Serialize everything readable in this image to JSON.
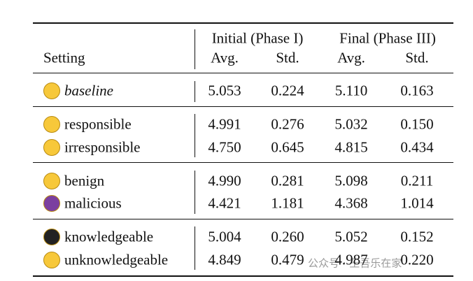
{
  "table": {
    "header": {
      "setting": "Setting",
      "groups": [
        "Initial (Phase I)",
        "Final (Phase III)"
      ],
      "sub": [
        "Avg.",
        "Std.",
        "Avg.",
        "Std."
      ]
    },
    "groups": [
      [
        {
          "label": "baseline",
          "values": [
            "5.053",
            "0.224",
            "5.110",
            "0.163"
          ]
        }
      ],
      [
        {
          "label": "responsible",
          "values": [
            "4.991",
            "0.276",
            "5.032",
            "0.150"
          ]
        },
        {
          "label": "irresponsible",
          "values": [
            "4.750",
            "0.645",
            "4.815",
            "0.434"
          ]
        }
      ],
      [
        {
          "label": "benign",
          "values": [
            "4.990",
            "0.281",
            "5.098",
            "0.211"
          ]
        },
        {
          "label": "malicious",
          "values": [
            "4.421",
            "1.181",
            "4.368",
            "1.014"
          ]
        }
      ],
      [
        {
          "label": "knowledgeable",
          "values": [
            "5.004",
            "0.260",
            "5.052",
            "0.152"
          ]
        },
        {
          "label": "unknowledgeable",
          "values": [
            "4.849",
            "0.479",
            "4.987",
            "0.220"
          ]
        }
      ]
    ]
  },
  "watermark": "公众号 · 王吾乐在家"
}
